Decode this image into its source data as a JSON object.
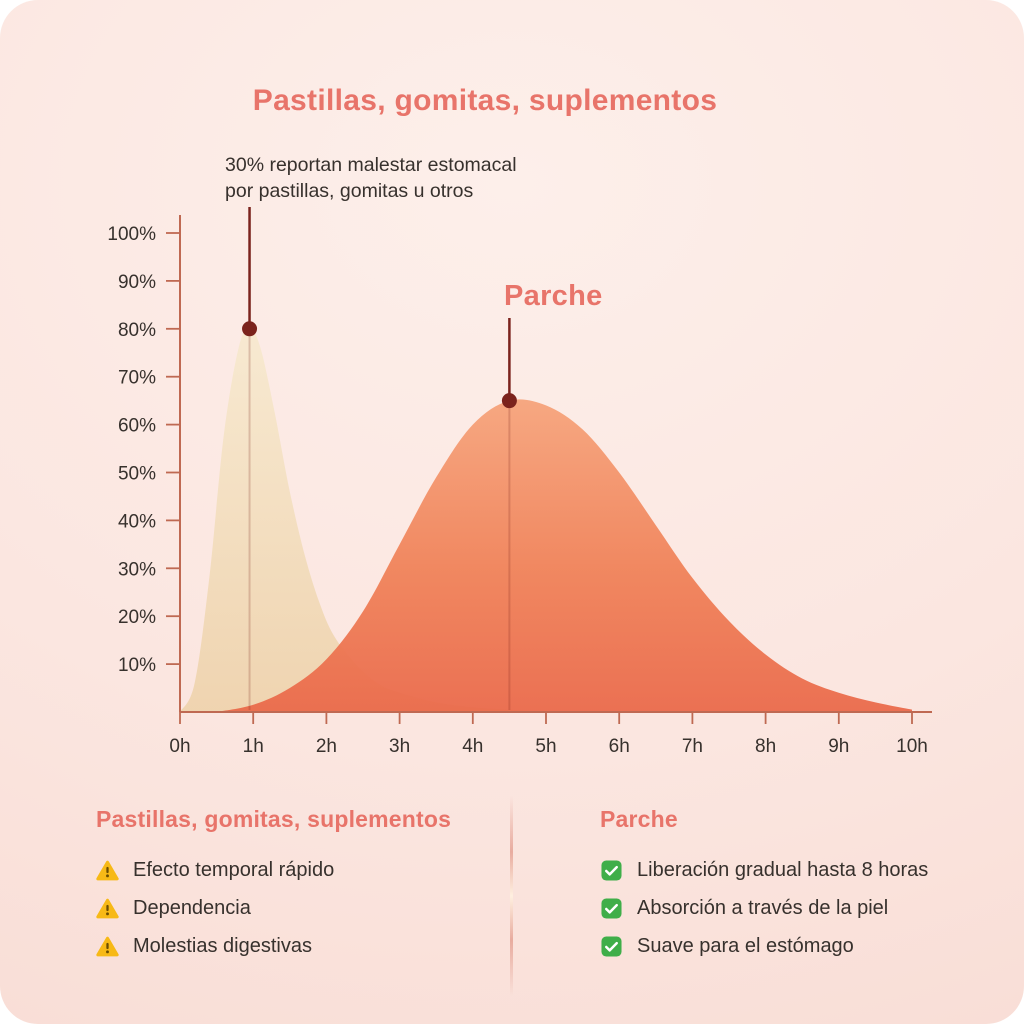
{
  "colors": {
    "accent": "#e8746a",
    "ink": "#37312d",
    "axis": "#bf6952",
    "annotation": "#7b231d",
    "warn": "#f7b916",
    "warn_dark": "#6b4d00",
    "check": "#3fae49",
    "card_top": "#fdefea",
    "card_mid": "#fbe6e0",
    "card_bottom": "#f8dcd4"
  },
  "chart": {
    "title": "Pastillas, gomitas, suplementos",
    "note_line1": "30% reportan malestar estomacal",
    "note_line2": "por pastillas, gomitas u otros",
    "patch_label": "Parche"
  },
  "chart_data": {
    "type": "area",
    "title": "Pastillas, gomitas, suplementos",
    "xlabel": "",
    "ylabel": "",
    "xlim": [
      0,
      10
    ],
    "ylim": [
      0,
      100
    ],
    "grid": false,
    "x_ticks": [
      {
        "v": 0,
        "label": "0h"
      },
      {
        "v": 1,
        "label": "1h"
      },
      {
        "v": 2,
        "label": "2h"
      },
      {
        "v": 3,
        "label": "3h"
      },
      {
        "v": 4,
        "label": "4h"
      },
      {
        "v": 5,
        "label": "5h"
      },
      {
        "v": 6,
        "label": "6h"
      },
      {
        "v": 7,
        "label": "7h"
      },
      {
        "v": 8,
        "label": "8h"
      },
      {
        "v": 9,
        "label": "9h"
      },
      {
        "v": 10,
        "label": "10h"
      }
    ],
    "y_ticks": [
      {
        "v": 10,
        "label": "10%"
      },
      {
        "v": 20,
        "label": "20%"
      },
      {
        "v": 30,
        "label": "30%"
      },
      {
        "v": 40,
        "label": "40%"
      },
      {
        "v": 50,
        "label": "50%"
      },
      {
        "v": 60,
        "label": "60%"
      },
      {
        "v": 70,
        "label": "70%"
      },
      {
        "v": 80,
        "label": "80%"
      },
      {
        "v": 90,
        "label": "90%"
      },
      {
        "v": 100,
        "label": "100%"
      }
    ],
    "annotations": [
      {
        "text": "30% reportan malestar estomacal por pastillas, gomitas u otros",
        "target_series": "Pastillas, gomitas, suplementos",
        "x": 0.95,
        "y": 80
      },
      {
        "text": "Parche",
        "target_series": "Parche",
        "x": 4.5,
        "y": 65
      }
    ],
    "series": [
      {
        "name": "Pastillas, gomitas, suplementos",
        "peak": {
          "x": 0.95,
          "y": 80
        },
        "x": [
          0,
          0.2,
          0.4,
          0.6,
          0.8,
          0.95,
          1.1,
          1.3,
          1.5,
          1.7,
          1.9,
          2.1,
          2.4,
          2.7,
          3.0,
          3.5,
          4.0,
          4.5,
          5.0
        ],
        "values": [
          0,
          6,
          28,
          58,
          76,
          80,
          76,
          62,
          46,
          33,
          23,
          16,
          10,
          6,
          4,
          2,
          1,
          0.5,
          0
        ],
        "fill": [
          {
            "offset": 0,
            "color": "#f7e9cf"
          },
          {
            "offset": 1,
            "color": "#eed2ab"
          }
        ],
        "opacity": 0.9
      },
      {
        "name": "Parche",
        "peak": {
          "x": 4.5,
          "y": 65
        },
        "x": [
          0.5,
          1.0,
          1.5,
          2.0,
          2.5,
          3.0,
          3.5,
          4.0,
          4.5,
          5.0,
          5.5,
          6.0,
          6.5,
          7.0,
          7.5,
          8.0,
          8.5,
          9.0,
          9.5,
          10
        ],
        "values": [
          0,
          1.5,
          5,
          11,
          21,
          35,
          49,
          60,
          65,
          64,
          59,
          50,
          39,
          28,
          19,
          12,
          7,
          4,
          2,
          0.5
        ],
        "fill": [
          {
            "offset": 0,
            "color": "#f6a47c"
          },
          {
            "offset": 0.55,
            "color": "#f08259"
          },
          {
            "offset": 1,
            "color": "#ea6a4b"
          }
        ],
        "opacity": 0.95
      }
    ]
  },
  "footer": {
    "left": {
      "title": "Pastillas, gomitas, suplementos",
      "items": [
        "Efecto temporal rápido",
        "Dependencia",
        "Molestias digestivas"
      ]
    },
    "right": {
      "title": "Parche",
      "items": [
        "Liberación gradual hasta 8 horas",
        "Absorción a través de la piel",
        "Suave para el estómago"
      ]
    }
  }
}
